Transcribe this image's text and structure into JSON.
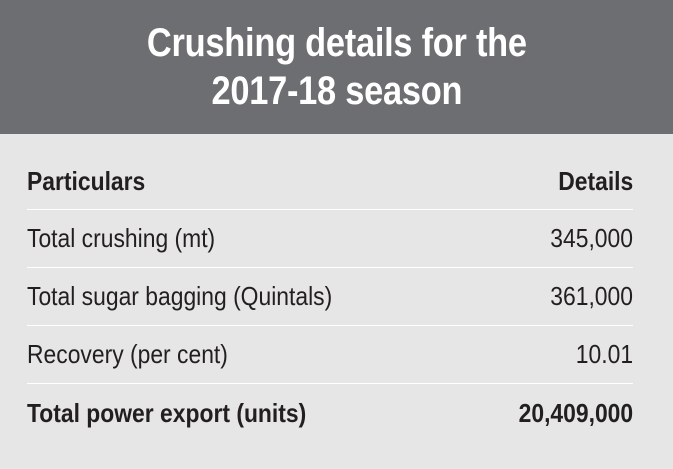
{
  "title": "Crushing details for the\n2017-18 season",
  "table": {
    "headers": [
      "Particulars",
      "Details"
    ],
    "rows": [
      [
        "Total crushing (mt)",
        "345,000"
      ],
      [
        "Total sugar bagging (Quintals)",
        "361,000"
      ],
      [
        "Recovery (per cent)",
        "10.01"
      ],
      [
        "Total power export (units)",
        "20,409,000"
      ]
    ]
  },
  "colors": {
    "header_bg": "#6d6e71",
    "body_bg": "#e6e6e6",
    "text": "#231f20",
    "title_text": "#ffffff"
  }
}
